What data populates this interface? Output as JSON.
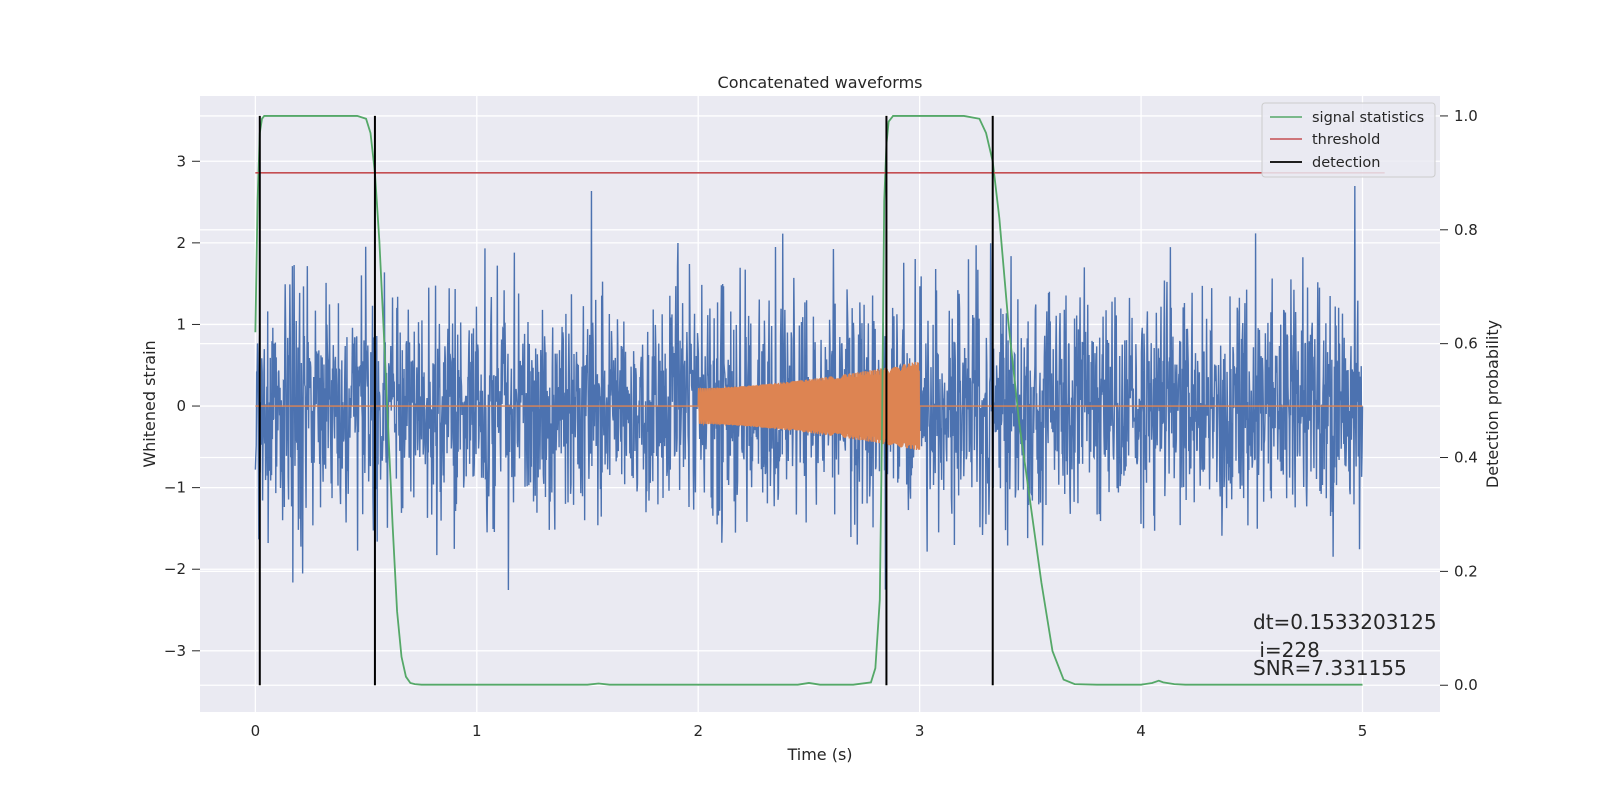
{
  "chart_data": {
    "type": "line",
    "title": "Concatenated waveforms",
    "xlabel": "Time (s)",
    "ylabel": "Whitened strain",
    "y2label": "Detection probability",
    "xlim": [
      -0.25,
      5.35
    ],
    "ylim": [
      -3.75,
      3.8
    ],
    "y2lim": [
      -0.047,
      1.035
    ],
    "xticks": [
      0,
      1,
      2,
      3,
      4,
      5
    ],
    "yticks": [
      -3,
      -2,
      -1,
      0,
      1,
      2,
      3
    ],
    "y2ticks": [
      0.0,
      0.2,
      0.4,
      0.6,
      0.8,
      1.0
    ],
    "xtick_labels": [
      "0",
      "1",
      "2",
      "3",
      "4",
      "5"
    ],
    "ytick_labels": [
      "−3",
      "−2",
      "−1",
      "0",
      "1",
      "2",
      "3"
    ],
    "y2tick_labels": [
      "0.0",
      "0.2",
      "0.4",
      "0.6",
      "0.8",
      "1.0"
    ],
    "grid": true,
    "legend_position": "top-right",
    "legend": [
      "signal statistics",
      "threshold",
      "detection"
    ],
    "colors": {
      "strain": "#4c72b0",
      "injection": "#dd8452",
      "signal_statistics": "#55a868",
      "threshold": "#c44e52",
      "detection": "#000000",
      "background": "#eaeaf2"
    },
    "series": [
      {
        "name": "signal statistics",
        "axis": "right",
        "x": [
          0.0,
          0.01,
          0.02,
          0.03,
          0.04,
          0.06,
          0.1,
          0.2,
          0.3,
          0.4,
          0.46,
          0.5,
          0.52,
          0.54,
          0.56,
          0.58,
          0.6,
          0.62,
          0.64,
          0.66,
          0.68,
          0.7,
          0.72,
          0.75,
          0.8,
          1.0,
          1.5,
          1.55,
          1.6,
          2.0,
          2.45,
          2.5,
          2.55,
          2.7,
          2.78,
          2.8,
          2.82,
          2.83,
          2.84,
          2.85,
          2.86,
          2.88,
          2.9,
          2.95,
          3.0,
          3.2,
          3.27,
          3.3,
          3.33,
          3.36,
          3.4,
          3.45,
          3.5,
          3.55,
          3.6,
          3.65,
          3.7,
          3.8,
          4.0,
          4.05,
          4.08,
          4.1,
          4.15,
          4.2,
          4.5,
          4.8,
          5.0
        ],
        "values": [
          0.62,
          0.85,
          0.97,
          0.995,
          1.0,
          1.0,
          1.0,
          1.0,
          1.0,
          1.0,
          1.0,
          0.995,
          0.97,
          0.9,
          0.78,
          0.62,
          0.45,
          0.28,
          0.13,
          0.05,
          0.015,
          0.004,
          0.002,
          0.001,
          0.001,
          0.001,
          0.001,
          0.003,
          0.001,
          0.001,
          0.001,
          0.004,
          0.001,
          0.001,
          0.005,
          0.03,
          0.15,
          0.45,
          0.85,
          0.95,
          0.99,
          1.0,
          1.0,
          1.0,
          1.0,
          1.0,
          0.995,
          0.97,
          0.92,
          0.82,
          0.64,
          0.46,
          0.32,
          0.18,
          0.06,
          0.01,
          0.002,
          0.001,
          0.001,
          0.004,
          0.008,
          0.005,
          0.002,
          0.001,
          0.001,
          0.001,
          0.001
        ]
      },
      {
        "name": "threshold",
        "axis": "right",
        "x": [
          0.0,
          5.1
        ],
        "values": [
          0.9,
          0.9
        ]
      },
      {
        "name": "detection",
        "axis": "right",
        "x": [
          0.02,
          0.54,
          2.85,
          3.33
        ],
        "values": [
          1.0,
          1.0,
          1.0,
          1.0
        ]
      }
    ],
    "strain": {
      "x_range": [
        0.0,
        5.0
      ],
      "noise_std": 0.7,
      "ylim_extent": [
        -3.1,
        3.3
      ]
    },
    "injection": {
      "x_range": [
        2.0,
        3.0
      ],
      "amplitude_start": 0.22,
      "amplitude_end": 0.55
    },
    "annotations": [
      "dt=0.1533203125",
      " i=228",
      "SNR=7.331155"
    ]
  }
}
